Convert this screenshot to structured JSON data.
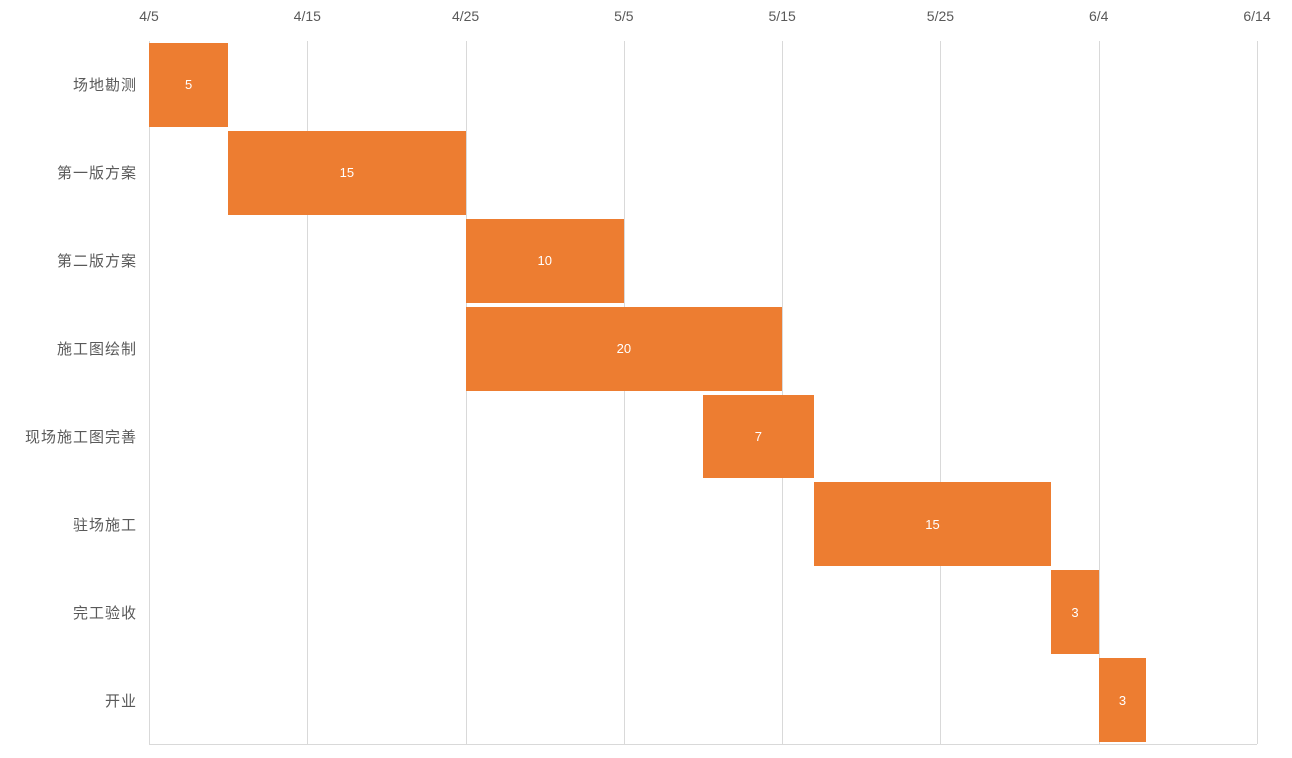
{
  "chart_data": {
    "type": "bar",
    "subtype": "gantt",
    "title": "",
    "legend": "none",
    "grid": "vertical-only",
    "x_axis": {
      "position": "top",
      "tick_labels": [
        "4/5",
        "4/15",
        "4/25",
        "5/5",
        "5/15",
        "5/25",
        "6/4",
        "6/14"
      ],
      "start_date": "4/5",
      "end_date": "6/14",
      "total_days": 70,
      "tick_interval_days": 10
    },
    "categories": [
      "场地勘测",
      "第一版方案",
      "第二版方案",
      "施工图绘制",
      "现场施工图完善",
      "驻场施工",
      "完工验收",
      "开业"
    ],
    "tasks": [
      {
        "label": "场地勘测",
        "start": "4/5",
        "end": "4/10",
        "start_day": 0,
        "duration": 5
      },
      {
        "label": "第一版方案",
        "start": "4/10",
        "end": "4/25",
        "start_day": 5,
        "duration": 15
      },
      {
        "label": "第二版方案",
        "start": "4/25",
        "end": "5/5",
        "start_day": 20,
        "duration": 10
      },
      {
        "label": "施工图绘制",
        "start": "4/25",
        "end": "5/15",
        "start_day": 20,
        "duration": 20
      },
      {
        "label": "现场施工图完善",
        "start": "5/10",
        "end": "5/17",
        "start_day": 35,
        "duration": 7
      },
      {
        "label": "驻场施工",
        "start": "5/17",
        "end": "6/1",
        "start_day": 42,
        "duration": 15
      },
      {
        "label": "完工验收",
        "start": "6/1",
        "end": "6/4",
        "start_day": 57,
        "duration": 3
      },
      {
        "label": "开业",
        "start": "6/4",
        "end": "6/7",
        "start_day": 60,
        "duration": 3
      }
    ],
    "series": [
      {
        "name": "duration_days",
        "values": [
          5,
          15,
          10,
          20,
          7,
          15,
          3,
          3
        ]
      }
    ],
    "colors": {
      "bar": "#ED7D31",
      "bar_label": "#FFFFFF",
      "gridline": "#D9D9D9",
      "axis_line": "#D9D9D9",
      "text": "#595959"
    }
  }
}
